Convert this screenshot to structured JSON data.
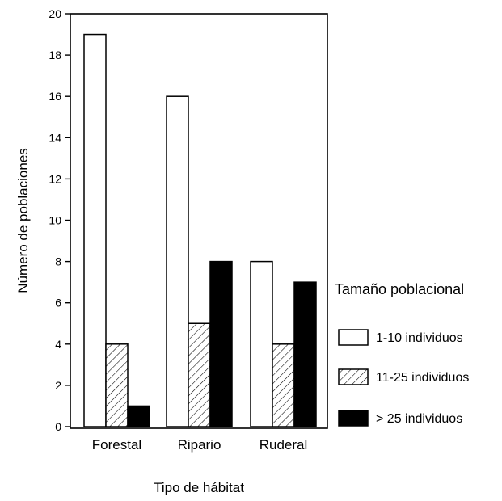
{
  "chart_data": {
    "type": "bar",
    "xlabel": "Tipo de hábitat",
    "ylabel": "Número de poblaciones",
    "ylim": [
      0,
      20
    ],
    "yticks": [
      0,
      2,
      4,
      6,
      8,
      10,
      12,
      14,
      16,
      18,
      20
    ],
    "categories": [
      "Forestal",
      "Ripario",
      "Ruderal"
    ],
    "series": [
      {
        "name": "1-10 individuos",
        "values": [
          19,
          16,
          8
        ],
        "fill": "white"
      },
      {
        "name": "11-25 individuos",
        "values": [
          4,
          5,
          4
        ],
        "fill": "hatch"
      },
      {
        "name": "> 25 individuos",
        "values": [
          1,
          8,
          7
        ],
        "fill": "black"
      }
    ],
    "legend": {
      "title": "Tamaño poblacional",
      "position": "right"
    },
    "grid": false
  }
}
